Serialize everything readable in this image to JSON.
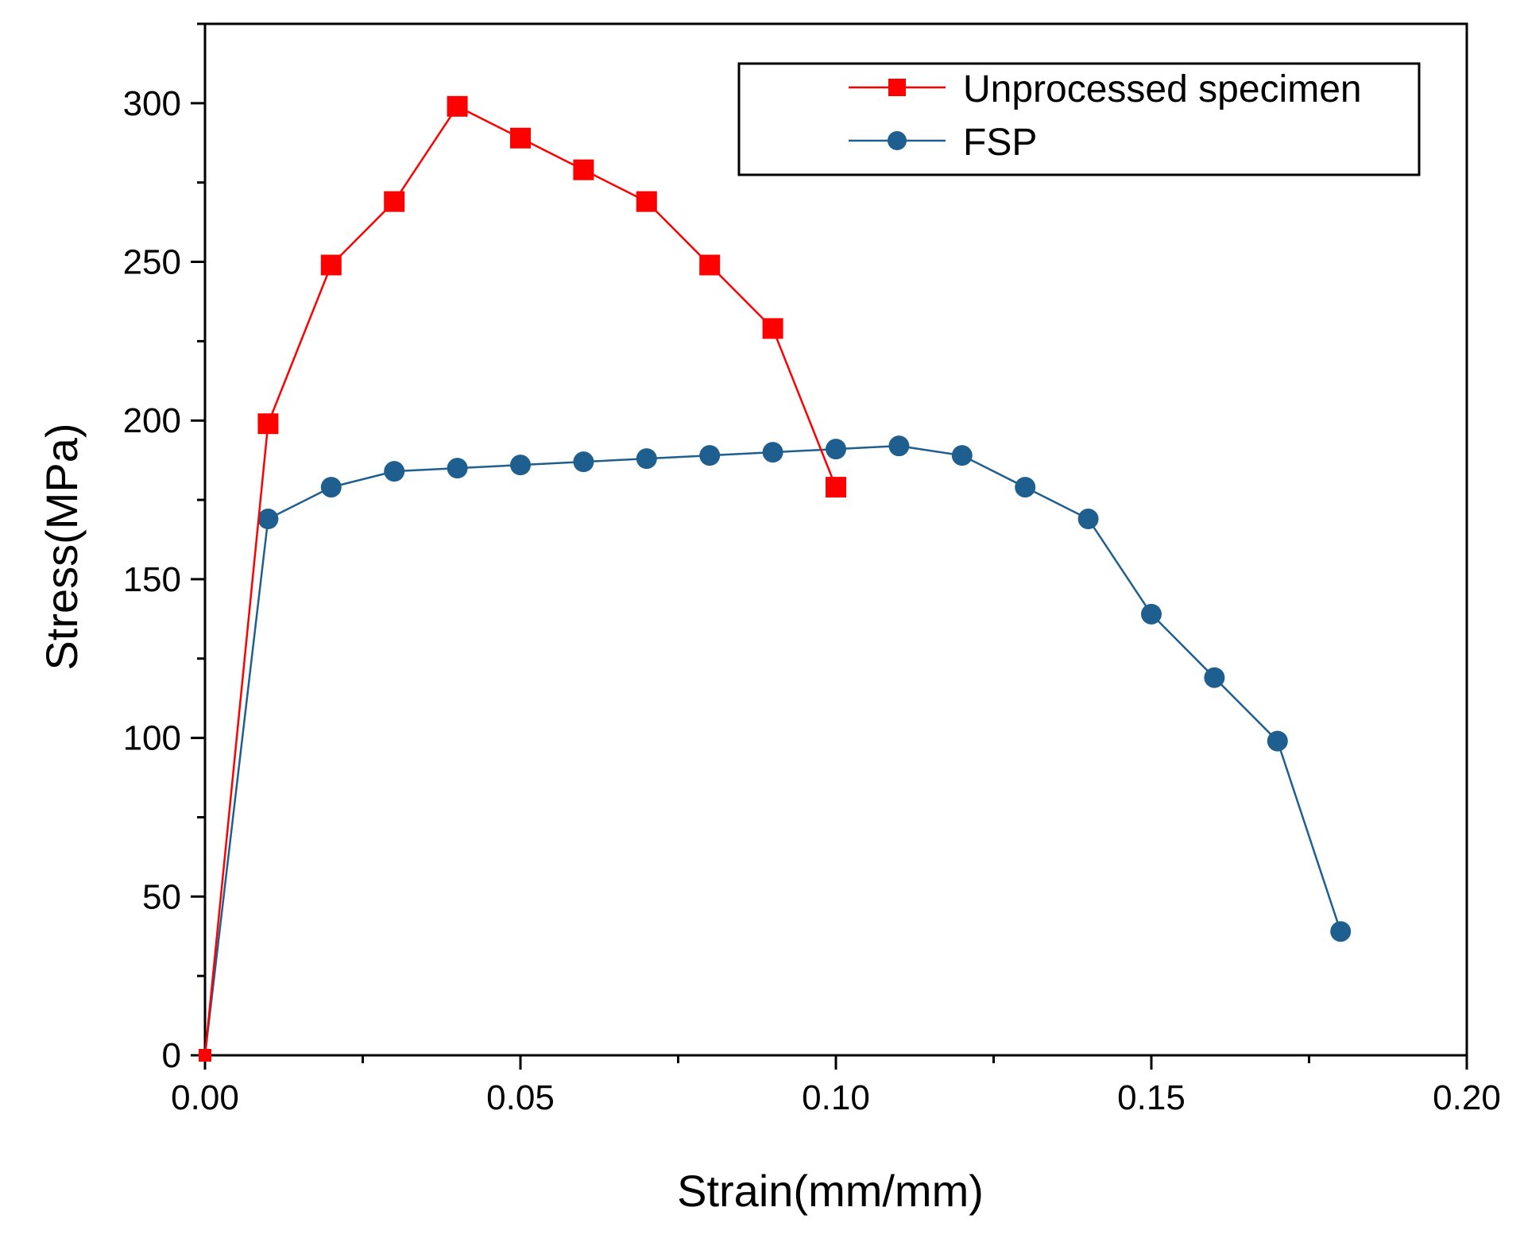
{
  "chart_data": {
    "type": "line",
    "title": "",
    "xlabel": "Strain(mm/mm)",
    "ylabel": "Stress(MPa)",
    "xlim": [
      0,
      0.2
    ],
    "ylim": [
      0,
      325
    ],
    "xticks": [
      0.0,
      0.05,
      0.1,
      0.15,
      0.2
    ],
    "xtick_labels": [
      "0.00",
      "0.05",
      "0.10",
      "0.15",
      "0.20"
    ],
    "yticks": [
      0,
      50,
      100,
      150,
      200,
      250,
      300
    ],
    "ytick_labels": [
      "0",
      "50",
      "100",
      "150",
      "200",
      "250",
      "300"
    ],
    "grid": false,
    "legend_position": "top-right",
    "series": [
      {
        "name": "Unprocessed specimen",
        "color": "#ff0000",
        "marker": "square",
        "x": [
          0.0,
          0.01,
          0.02,
          0.03,
          0.04,
          0.05,
          0.06,
          0.07,
          0.08,
          0.09,
          0.1
        ],
        "y": [
          0,
          199,
          249,
          269,
          299,
          289,
          279,
          269,
          249,
          229,
          179
        ]
      },
      {
        "name": "FSP",
        "color": "#1f5f8f",
        "marker": "circle",
        "x": [
          0.0,
          0.01,
          0.02,
          0.03,
          0.04,
          0.05,
          0.06,
          0.07,
          0.08,
          0.09,
          0.1,
          0.11,
          0.12,
          0.13,
          0.14,
          0.15,
          0.16,
          0.17,
          0.18
        ],
        "y": [
          0,
          169,
          179,
          184,
          185,
          186,
          187,
          188,
          189,
          190,
          191,
          192,
          189,
          179,
          169,
          139,
          119,
          99,
          39
        ]
      }
    ]
  }
}
